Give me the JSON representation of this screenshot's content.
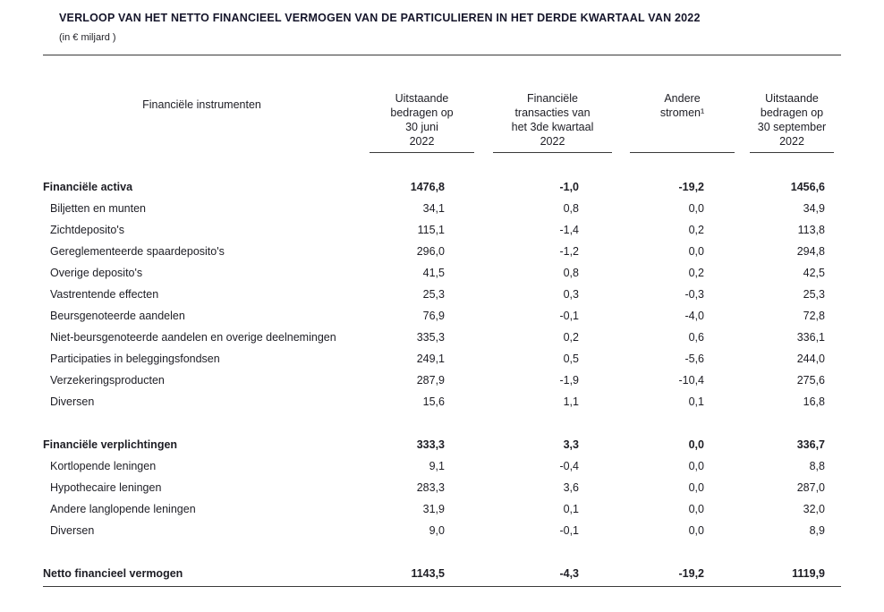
{
  "page": {
    "title": "VERLOOP VAN HET NETTO FINANCIEEL VERMOGEN VAN DE PARTICULIEREN IN HET DERDE KWARTAAL VAN 2022",
    "subtitle": "(in € miljard )"
  },
  "table": {
    "columns": [
      {
        "label": "Financiële instrumenten"
      },
      {
        "label": "Uitstaande\nbedragen op\n30 juni\n2022"
      },
      {
        "label": "Financiële\ntransacties van\nhet 3de kwartaal\n2022"
      },
      {
        "label": "Andere\nstromen¹"
      },
      {
        "label": "Uitstaande\nbedragen op\n30 september\n2022"
      }
    ],
    "sections": [
      {
        "rows": [
          {
            "label": "Financiële activa",
            "bold": true,
            "values": [
              "1476,8",
              "-1,0",
              "-19,2",
              "1456,6"
            ]
          },
          {
            "label": "Biljetten en munten",
            "bold": false,
            "values": [
              "34,1",
              "0,8",
              "0,0",
              "34,9"
            ]
          },
          {
            "label": "Zichtdeposito's",
            "bold": false,
            "values": [
              "115,1",
              "-1,4",
              "0,2",
              "113,8"
            ]
          },
          {
            "label": "Gereglementeerde spaardeposito's",
            "bold": false,
            "values": [
              "296,0",
              "-1,2",
              "0,0",
              "294,8"
            ]
          },
          {
            "label": "Overige deposito's",
            "bold": false,
            "values": [
              "41,5",
              "0,8",
              "0,2",
              "42,5"
            ]
          },
          {
            "label": "Vastrentende effecten",
            "bold": false,
            "values": [
              "25,3",
              "0,3",
              "-0,3",
              "25,3"
            ]
          },
          {
            "label": "Beursgenoteerde aandelen",
            "bold": false,
            "values": [
              "76,9",
              "-0,1",
              "-4,0",
              "72,8"
            ]
          },
          {
            "label": "Niet-beursgenoteerde aandelen en overige deelnemingen",
            "bold": false,
            "values": [
              "335,3",
              "0,2",
              "0,6",
              "336,1"
            ]
          },
          {
            "label": "Participaties in beleggingsfondsen",
            "bold": false,
            "values": [
              "249,1",
              "0,5",
              "-5,6",
              "244,0"
            ]
          },
          {
            "label": "Verzekeringsproducten",
            "bold": false,
            "values": [
              "287,9",
              "-1,9",
              "-10,4",
              "275,6"
            ]
          },
          {
            "label": "Diversen",
            "bold": false,
            "values": [
              "15,6",
              "1,1",
              "0,1",
              "16,8"
            ]
          }
        ]
      },
      {
        "rows": [
          {
            "label": "Financiële verplichtingen",
            "bold": true,
            "values": [
              "333,3",
              "3,3",
              "0,0",
              "336,7"
            ]
          },
          {
            "label": "Kortlopende leningen",
            "bold": false,
            "values": [
              "9,1",
              "-0,4",
              "0,0",
              "8,8"
            ]
          },
          {
            "label": "Hypothecaire leningen",
            "bold": false,
            "values": [
              "283,3",
              "3,6",
              "0,0",
              "287,0"
            ]
          },
          {
            "label": "Andere langlopende leningen",
            "bold": false,
            "values": [
              "31,9",
              "0,1",
              "0,0",
              "32,0"
            ]
          },
          {
            "label": "Diversen",
            "bold": false,
            "values": [
              "9,0",
              "-0,1",
              "0,0",
              "8,9"
            ]
          }
        ]
      },
      {
        "rows": [
          {
            "label": "Netto financieel vermogen",
            "bold": true,
            "values": [
              "1143,5",
              "-4,3",
              "-19,2",
              "1119,9"
            ]
          }
        ]
      }
    ]
  }
}
